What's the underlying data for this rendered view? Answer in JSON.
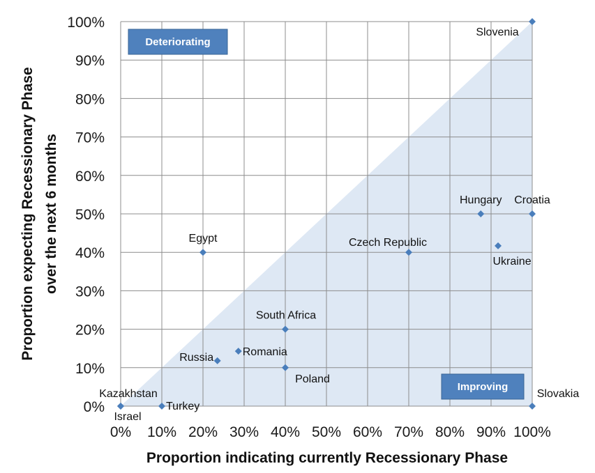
{
  "chart_data": {
    "type": "scatter",
    "xlabel": "Proportion indicating currently Recessionary Phase",
    "ylabel_line1": "Proportion expecting Recessionary Phase",
    "ylabel_line2": "over the next 6 months",
    "xlim": [
      0,
      100
    ],
    "ylim": [
      0,
      100
    ],
    "ticks": [
      "0%",
      "10%",
      "20%",
      "30%",
      "40%",
      "50%",
      "60%",
      "70%",
      "80%",
      "90%",
      "100%"
    ],
    "grid": true,
    "marker_color": "#4a7ebb",
    "region_color": "#dee8f4",
    "box_color": "#4f81bd",
    "region_labels": {
      "upper": "Deteriorating",
      "lower": "Improving"
    },
    "points": [
      {
        "name": "Slovenia",
        "x": 100,
        "y": 100
      },
      {
        "name": "Hungary",
        "x": 87.5,
        "y": 50
      },
      {
        "name": "Croatia",
        "x": 100,
        "y": 50
      },
      {
        "name": "Ukraine",
        "x": 91.7,
        "y": 41.7
      },
      {
        "name": "Czech Republic",
        "x": 70,
        "y": 40
      },
      {
        "name": "Egypt",
        "x": 20,
        "y": 40
      },
      {
        "name": "South Africa",
        "x": 40,
        "y": 20
      },
      {
        "name": "Romania",
        "x": 28.6,
        "y": 14.3
      },
      {
        "name": "Russia",
        "x": 23.5,
        "y": 11.8
      },
      {
        "name": "Poland",
        "x": 40,
        "y": 10
      },
      {
        "name": "Kazakhstan",
        "x": 0,
        "y": 0
      },
      {
        "name": "Israel",
        "x": 0,
        "y": 0
      },
      {
        "name": "Turkey",
        "x": 10,
        "y": 0
      },
      {
        "name": "Slovakia",
        "x": 100,
        "y": 0
      }
    ]
  }
}
